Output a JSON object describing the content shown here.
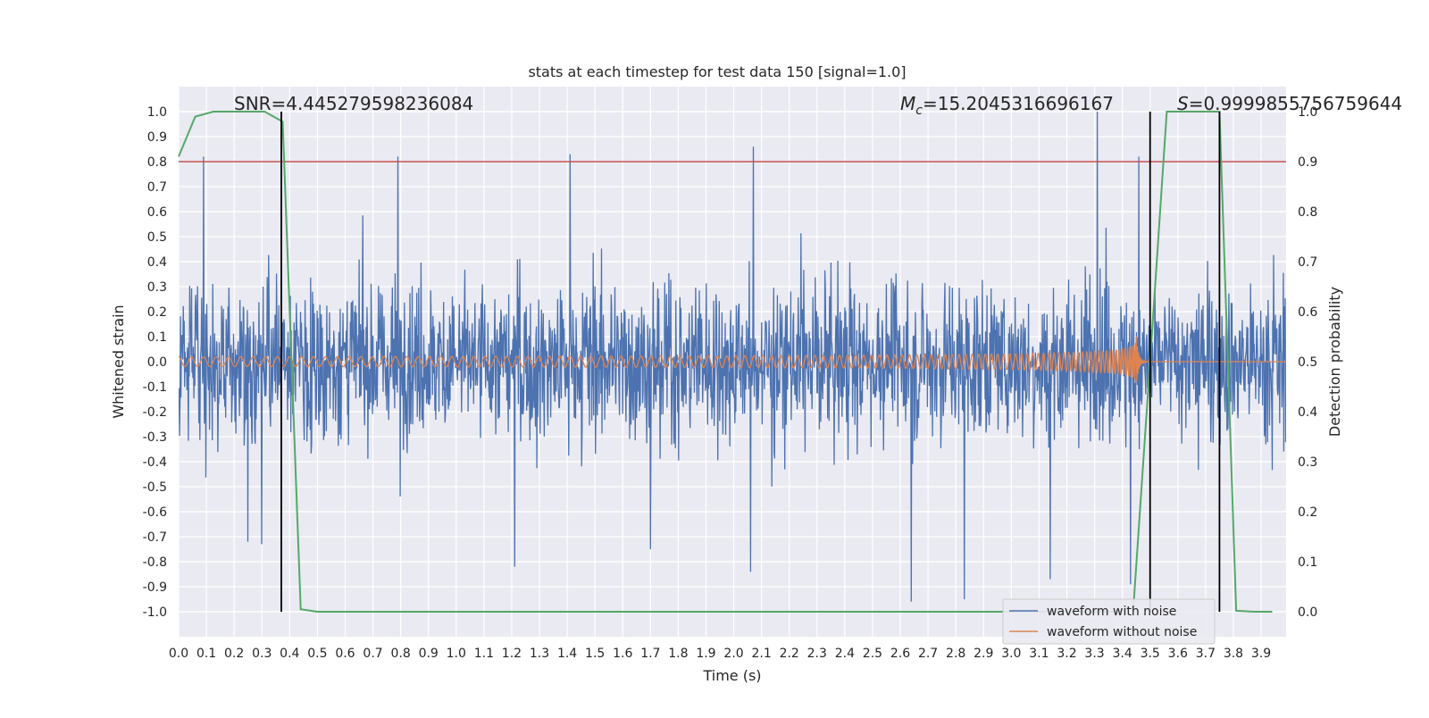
{
  "chart_data": {
    "type": "line",
    "title": "stats at each timestep for test data 150 [signal=1.0]",
    "xlabel": "Time (s)",
    "ylabel": "Whitened strain",
    "y2label": "Detection probability",
    "xlim": [
      0.0,
      3.99
    ],
    "ylim": [
      -1.1,
      1.1
    ],
    "y2lim": [
      -0.05,
      1.05
    ],
    "x_ticks": [
      0.0,
      0.1,
      0.2,
      0.3,
      0.4,
      0.5,
      0.6,
      0.7,
      0.8,
      0.9,
      1.0,
      1.1,
      1.2,
      1.3,
      1.4,
      1.5,
      1.6,
      1.7,
      1.8,
      1.9,
      2.0,
      2.1,
      2.2,
      2.3,
      2.4,
      2.5,
      2.6,
      2.7,
      2.8,
      2.9,
      3.0,
      3.1,
      3.2,
      3.3,
      3.4,
      3.5,
      3.6,
      3.7,
      3.8,
      3.9
    ],
    "y_ticks": [
      1.0,
      0.9,
      0.8,
      0.7,
      0.6,
      0.5,
      0.4,
      0.3,
      0.2,
      0.1,
      0.0,
      -0.1,
      -0.2,
      -0.3,
      -0.4,
      -0.5,
      -0.6,
      -0.7,
      -0.8,
      -0.9,
      -1.0
    ],
    "y_tick_labels": [
      "1.0",
      "0.9",
      "0.8",
      "0.7",
      "0.6",
      "0.5",
      "0.4",
      "0.3",
      "0.2",
      "0.1",
      "0.0",
      "-0.1",
      "-0.2",
      "-0.3",
      "-0.4",
      "-0.5",
      "-0.6",
      "-0.7",
      "-0.8",
      "-0.9",
      "-1.0"
    ],
    "y2_ticks": [
      1.0,
      0.9,
      0.8,
      0.7,
      0.6,
      0.5,
      0.4,
      0.3,
      0.2,
      0.1,
      0.0
    ],
    "y2_tick_labels": [
      "1.0",
      "0.9",
      "0.8",
      "0.7",
      "0.6",
      "0.5",
      "0.4",
      "0.3",
      "0.2",
      "0.1",
      "0.0"
    ],
    "grid": true,
    "legend_placement": "lower-right",
    "annotations": {
      "snr": "SNR=4.445279598236084",
      "mc_symbol": "M",
      "mc_sub": "c",
      "mc_value": "=15.2045316696167",
      "s_symbol": "S",
      "s_value": "=0.9999855756759644"
    },
    "threshold": {
      "axis": "y2",
      "value": 0.9,
      "color": "#c44e52"
    },
    "vlines_x": [
      0.37,
      3.5,
      3.75
    ],
    "noise": {
      "name": "waveform with noise",
      "color": "#4c72b0",
      "x_start": 0.0,
      "x_end": 3.99,
      "amplitude_envelope": 0.42,
      "extreme_peaks": [
        {
          "x": 0.09,
          "y": 0.82
        },
        {
          "x": 0.79,
          "y": 0.82
        },
        {
          "x": 1.41,
          "y": 0.83
        },
        {
          "x": 2.07,
          "y": 0.86
        },
        {
          "x": 2.64,
          "y": 0.84
        },
        {
          "x": 3.31,
          "y": 1.0
        },
        {
          "x": 3.46,
          "y": 0.82
        },
        {
          "x": 2.64,
          "y": -0.96
        },
        {
          "x": 2.83,
          "y": -0.95
        },
        {
          "x": 2.06,
          "y": -0.84
        },
        {
          "x": 1.21,
          "y": -0.82
        },
        {
          "x": 3.14,
          "y": -0.87
        },
        {
          "x": 3.43,
          "y": -0.89
        },
        {
          "x": 0.3,
          "y": -0.73
        },
        {
          "x": 0.25,
          "y": -0.72
        },
        {
          "x": 1.7,
          "y": -0.75
        }
      ]
    },
    "clean": {
      "name": "waveform without noise",
      "color": "#dd8452",
      "x_start": 0.0,
      "x_merger": 3.45,
      "x_end": 3.99,
      "start_frequency_hz": 22,
      "peak_amplitude": 0.22,
      "start_amplitude": 0.012
    },
    "probability": {
      "name": "detection probability",
      "axis": "y2",
      "color": "#55a868",
      "x": [
        0.0,
        0.06,
        0.125,
        0.19,
        0.25,
        0.31,
        0.375,
        0.44,
        0.5,
        0.56,
        0.625,
        0.69,
        0.75,
        0.81,
        0.875,
        0.94,
        1.0,
        1.06,
        1.125,
        1.19,
        1.25,
        1.31,
        1.375,
        1.44,
        1.5,
        1.56,
        1.625,
        1.69,
        1.75,
        1.81,
        1.875,
        1.94,
        2.0,
        2.06,
        2.125,
        2.19,
        2.25,
        2.31,
        2.375,
        2.44,
        2.5,
        2.56,
        2.625,
        2.69,
        2.75,
        2.81,
        2.875,
        2.94,
        3.0,
        3.06,
        3.125,
        3.19,
        3.25,
        3.31,
        3.375,
        3.44,
        3.5,
        3.56,
        3.625,
        3.69,
        3.75,
        3.81,
        3.875,
        3.94
      ],
      "y": [
        0.91,
        0.99,
        1.0,
        1.0,
        1.0,
        1.0,
        0.98,
        0.005,
        0.0,
        0.0,
        0.0,
        0.0,
        0.0,
        0.0,
        0.0,
        0.0,
        0.0,
        0.0,
        0.0,
        0.0,
        0.0,
        0.0,
        0.0,
        0.0,
        0.0,
        0.0,
        0.0,
        0.0,
        0.0,
        0.0,
        0.0,
        0.0,
        0.0,
        0.0,
        0.0,
        0.0,
        0.0,
        0.0,
        0.0,
        0.0,
        0.0,
        0.0,
        0.0,
        0.0,
        0.0,
        0.0,
        0.0,
        0.0,
        0.0,
        0.0,
        0.0,
        0.0,
        0.0,
        0.0,
        0.0,
        0.01,
        0.5,
        1.0,
        1.0,
        1.0,
        1.0,
        0.002,
        0.0,
        0.0
      ]
    },
    "legend": [
      "waveform with noise",
      "waveform without noise"
    ]
  }
}
